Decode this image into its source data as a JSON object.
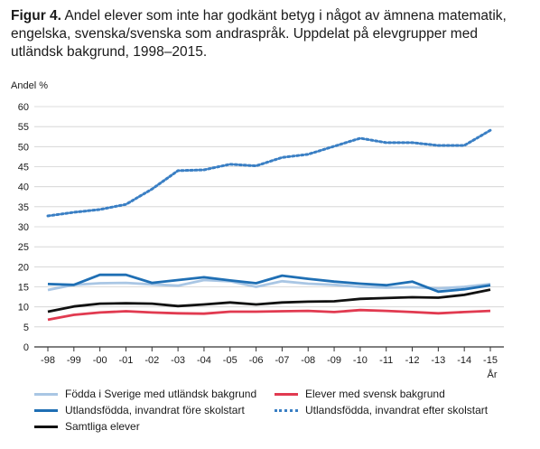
{
  "title": {
    "prefix": "Figur 4.",
    "text": "Andel elever som inte har godkänt betyg i något av ämnena matematik, engelska, svenska/svenska som andraspråk. Uppdelat på elevgrupper med utländsk bakgrund, 1998–2015."
  },
  "chart_data": {
    "type": "line",
    "ylabel": "Andel %",
    "xlabel": "År",
    "ylim": [
      0,
      60
    ],
    "yticks": [
      0,
      5,
      10,
      15,
      20,
      25,
      30,
      35,
      40,
      45,
      50,
      55,
      60
    ],
    "grid": true,
    "legend": "bottom",
    "categories": [
      "-98",
      "-99",
      "-00",
      "-01",
      "-02",
      "-03",
      "-04",
      "-05",
      "-06",
      "-07",
      "-08",
      "-09",
      "-10",
      "-11",
      "-12",
      "-13",
      "-14",
      "-15"
    ],
    "series": [
      {
        "name": "Födda i Sverige med utländsk bakgrund",
        "color": "#a9c6e4",
        "dash": "solid",
        "values": [
          14.2,
          15.5,
          15.9,
          16.0,
          15.6,
          15.3,
          16.7,
          16.4,
          15.0,
          16.4,
          15.8,
          15.5,
          15.0,
          14.8,
          14.9,
          14.6,
          15.0,
          15.7
        ]
      },
      {
        "name": "Elever med svensk bakgrund",
        "color": "#e13a50",
        "dash": "solid",
        "values": [
          6.8,
          8.0,
          8.6,
          8.9,
          8.6,
          8.4,
          8.3,
          8.8,
          8.8,
          8.9,
          9.0,
          8.7,
          9.2,
          9.0,
          8.7,
          8.4,
          8.7,
          9.0
        ]
      },
      {
        "name": "Utlandsfödda, invandrat före skolstart",
        "color": "#1f6fb4",
        "dash": "solid",
        "values": [
          15.7,
          15.5,
          18.0,
          18.0,
          16.0,
          16.7,
          17.4,
          16.6,
          15.9,
          17.8,
          17.0,
          16.3,
          15.8,
          15.4,
          16.3,
          13.8,
          14.4,
          15.4
        ]
      },
      {
        "name": "Utlandsfödda, invandrat efter skolstart",
        "color": "#3a7fc4",
        "dash": "dotted",
        "values": [
          32.7,
          33.6,
          34.3,
          35.6,
          39.4,
          44.0,
          44.2,
          45.6,
          45.2,
          47.3,
          48.1,
          50.1,
          52.1,
          51.0,
          51.0,
          50.3,
          50.3,
          54.1
        ]
      },
      {
        "name": "Samtliga elever",
        "color": "#111111",
        "dash": "solid",
        "values": [
          8.8,
          10.1,
          10.8,
          10.9,
          10.8,
          10.2,
          10.6,
          11.1,
          10.6,
          11.1,
          11.3,
          11.4,
          12.0,
          12.2,
          12.4,
          12.3,
          13.0,
          14.3
        ]
      }
    ]
  }
}
